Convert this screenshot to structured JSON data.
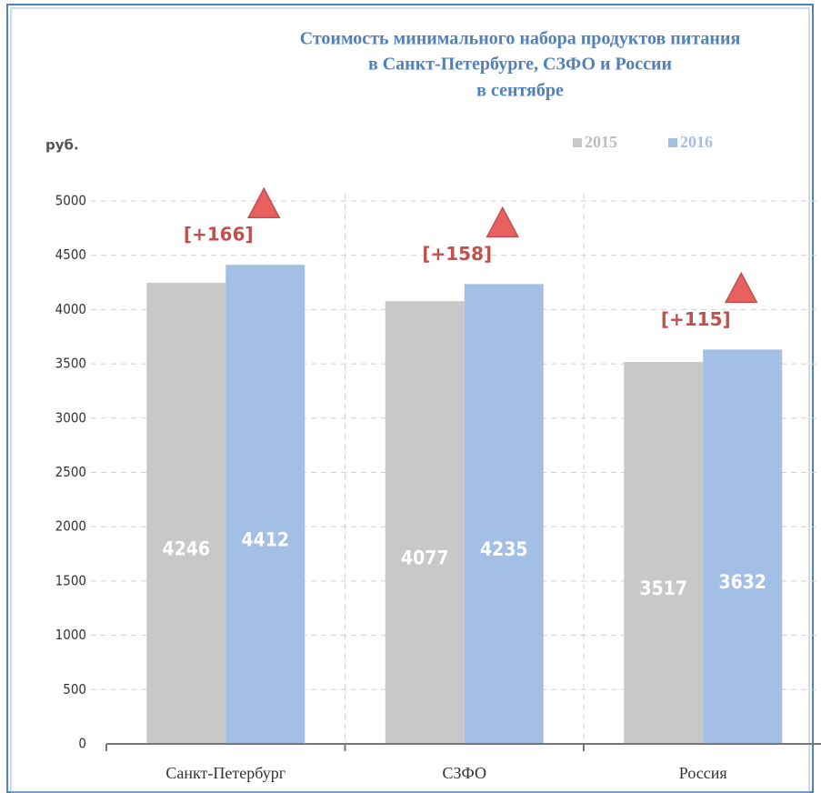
{
  "chart_data": {
    "type": "bar",
    "title": [
      "Стоимость минимального набора продуктов питания",
      "в Санкт-Петербурге, СЗФО и России",
      "в сентябре"
    ],
    "y_label": "руб.",
    "categories": [
      "Санкт-Петербург",
      "СЗФО",
      "Россия"
    ],
    "series": [
      {
        "name": "2015",
        "color": "#c8c8c8",
        "values": [
          4246,
          4077,
          3517
        ]
      },
      {
        "name": "2016",
        "color": "#a3bfe6",
        "values": [
          4412,
          4235,
          3632
        ]
      }
    ],
    "annotations": [
      "[+166]",
      "[+158]",
      "[+115]"
    ],
    "annotation_color": "#c0504d",
    "ylim": [
      0,
      5000
    ],
    "yticks": [
      0,
      500,
      1000,
      1500,
      2000,
      2500,
      3000,
      3500,
      4000,
      4500,
      5000
    ],
    "grid": true,
    "legend": "top-right"
  }
}
